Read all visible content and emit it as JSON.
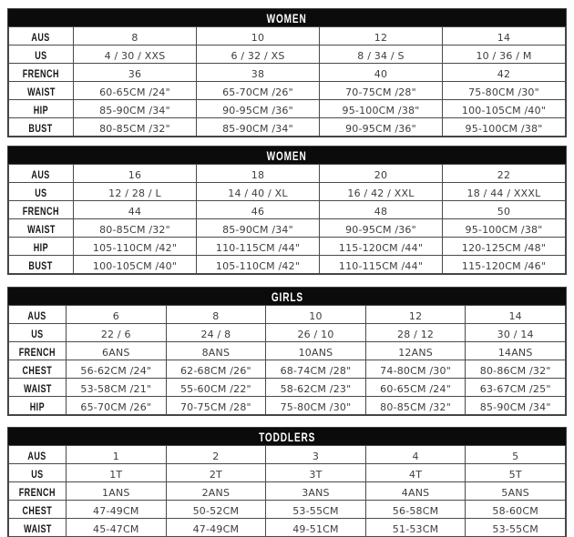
{
  "colors": {
    "header_bg": "#0b0b0b",
    "header_text": "#ffffff",
    "grid_border": "#4a4a4a",
    "cell_text": "#3d3d3d",
    "label_text": "#151515",
    "page_bg": "#ffffff"
  },
  "tables": [
    {
      "title": "WOMEN",
      "rows": [
        {
          "label": "AUS",
          "cells": [
            "8",
            "10",
            "12",
            "14"
          ]
        },
        {
          "label": "US",
          "cells": [
            "4 / 30 / XXS",
            "6 / 32 / XS",
            "8 / 34 / S",
            "10 / 36 / M"
          ]
        },
        {
          "label": "FRENCH",
          "cells": [
            "36",
            "38",
            "40",
            "42"
          ]
        },
        {
          "label": "WAIST",
          "cells": [
            "60-65CM /24\"",
            "65-70CM /26\"",
            "70-75CM /28\"",
            "75-80CM /30\""
          ]
        },
        {
          "label": "HIP",
          "cells": [
            "85-90CM /34\"",
            "90-95CM /36\"",
            "95-100CM /38\"",
            "100-105CM /40\""
          ]
        },
        {
          "label": "BUST",
          "cells": [
            "80-85CM /32\"",
            "85-90CM /34\"",
            "90-95CM /36\"",
            "95-100CM /38\""
          ]
        }
      ]
    },
    {
      "title": "WOMEN",
      "rows": [
        {
          "label": "AUS",
          "cells": [
            "16",
            "18",
            "20",
            "22"
          ]
        },
        {
          "label": "US",
          "cells": [
            "12 / 28 / L",
            "14 / 40 / XL",
            "16 / 42 / XXL",
            "18 / 44 / XXXL"
          ]
        },
        {
          "label": "FRENCH",
          "cells": [
            "44",
            "46",
            "48",
            "50"
          ]
        },
        {
          "label": "WAIST",
          "cells": [
            "80-85CM /32\"",
            "85-90CM /34\"",
            "90-95CM /36\"",
            "95-100CM /38\""
          ]
        },
        {
          "label": "HIP",
          "cells": [
            "105-110CM /42\"",
            "110-115CM /44\"",
            "115-120CM /44\"",
            "120-125CM /48\""
          ]
        },
        {
          "label": "BUST",
          "cells": [
            "100-105CM /40\"",
            "105-110CM /42\"",
            "110-115CM /44\"",
            "115-120CM /46\""
          ]
        }
      ]
    },
    {
      "title": "GIRLS",
      "rows": [
        {
          "label": "AUS",
          "cells": [
            "6",
            "8",
            "10",
            "12",
            "14"
          ]
        },
        {
          "label": "US",
          "cells": [
            "22 / 6",
            "24 / 8",
            "26 / 10",
            "28 / 12",
            "30 / 14"
          ]
        },
        {
          "label": "FRENCH",
          "cells": [
            "6ANS",
            "8ANS",
            "10ANS",
            "12ANS",
            "14ANS"
          ]
        },
        {
          "label": "CHEST",
          "cells": [
            "56-62CM /24\"",
            "62-68CM /26\"",
            "68-74CM /28\"",
            "74-80CM /30\"",
            "80-86CM /32\""
          ]
        },
        {
          "label": "WAIST",
          "cells": [
            "53-58CM /21\"",
            "55-60CM /22\"",
            "58-62CM /23\"",
            "60-65CM /24\"",
            "63-67CM /25\""
          ]
        },
        {
          "label": "HIP",
          "cells": [
            "65-70CM /26\"",
            "70-75CM /28\"",
            "75-80CM /30\"",
            "80-85CM /32\"",
            "85-90CM /34\""
          ]
        }
      ]
    },
    {
      "title": "TODDLERS",
      "rows": [
        {
          "label": "AUS",
          "cells": [
            "1",
            "2",
            "3",
            "4",
            "5"
          ]
        },
        {
          "label": "US",
          "cells": [
            "1T",
            "2T",
            "3T",
            "4T",
            "5T"
          ]
        },
        {
          "label": "FRENCH",
          "cells": [
            "1ANS",
            "2ANS",
            "3ANS",
            "4ANS",
            "5ANS"
          ]
        },
        {
          "label": "CHEST",
          "cells": [
            "47-49CM",
            "50-52CM",
            "53-55CM",
            "56-58CM",
            "58-60CM"
          ]
        },
        {
          "label": "WAIST",
          "cells": [
            "45-47CM",
            "47-49CM",
            "49-51CM",
            "51-53CM",
            "53-55CM"
          ]
        }
      ]
    }
  ]
}
